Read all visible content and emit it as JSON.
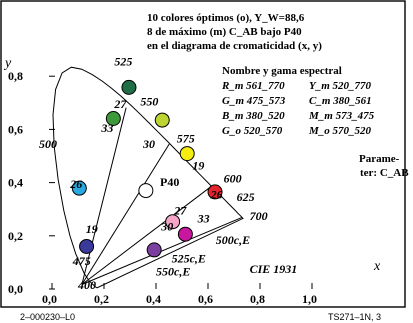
{
  "chart_data": {
    "type": "scatter",
    "title_lines": [
      "10 colores óptimos (o), Y_W=88,6",
      "8 de máximo (m) C_AB bajo P40",
      "en el diagrama de cromaticidad (x, y)"
    ],
    "legend": {
      "title": "Nombre y gama espectral",
      "entries": [
        {
          "left": "R_m 561_770",
          "right": "Y_m 520_770"
        },
        {
          "left": "G_m 475_573",
          "right": "C_m 380_561"
        },
        {
          "left": "B_m 380_520",
          "right": "M_m 573_475"
        },
        {
          "left": "G_o 520_570",
          "right": "M_o 570_520"
        }
      ]
    },
    "side_note": [
      "Parame-",
      "ter: C_AB"
    ],
    "xlabel": "x",
    "ylabel": "y",
    "xlim": [
      0.0,
      1.0
    ],
    "ylim": [
      0.0,
      0.9
    ],
    "x_ticks": [
      "0,0",
      "0,2",
      "0,4",
      "0,6",
      "0,8",
      "1,0"
    ],
    "y_ticks": [
      "0,0",
      "0,2",
      "0,4",
      "0,6",
      "0,8"
    ],
    "spectral_labels": [
      {
        "text": "400",
        "x": 0.1,
        "y": 0.0
      },
      {
        "text": "475",
        "x": 0.08,
        "y": 0.09
      },
      {
        "text": "19",
        "x": 0.13,
        "y": 0.21
      },
      {
        "text": "26",
        "x": 0.07,
        "y": 0.38
      },
      {
        "text": "500",
        "x": -0.05,
        "y": 0.53
      },
      {
        "text": "33",
        "x": 0.19,
        "y": 0.59
      },
      {
        "text": "27",
        "x": 0.24,
        "y": 0.68
      },
      {
        "text": "525",
        "x": 0.24,
        "y": 0.84
      },
      {
        "text": "550",
        "x": 0.34,
        "y": 0.69
      },
      {
        "text": "30",
        "x": 0.35,
        "y": 0.53
      },
      {
        "text": "575",
        "x": 0.48,
        "y": 0.55
      },
      {
        "text": "19",
        "x": 0.54,
        "y": 0.45
      },
      {
        "text": "600",
        "x": 0.66,
        "y": 0.4
      },
      {
        "text": "26",
        "x": 0.61,
        "y": 0.34
      },
      {
        "text": "625",
        "x": 0.71,
        "y": 0.33
      },
      {
        "text": "700",
        "x": 0.76,
        "y": 0.26
      },
      {
        "text": "27",
        "x": 0.47,
        "y": 0.28
      },
      {
        "text": "33",
        "x": 0.56,
        "y": 0.25
      },
      {
        "text": "30",
        "x": 0.42,
        "y": 0.22
      },
      {
        "text": "500c,E",
        "x": 0.63,
        "y": 0.17
      },
      {
        "text": "525c,E",
        "x": 0.46,
        "y": 0.1
      },
      {
        "text": "550c,E",
        "x": 0.4,
        "y": 0.05
      },
      {
        "text": "CIE 1931",
        "x": 0.76,
        "y": 0.06
      }
    ],
    "center_label": "P40",
    "series": [
      {
        "x": 0.133,
        "y": 0.16,
        "color": "#3b3a9c"
      },
      {
        "x": 0.105,
        "y": 0.379,
        "color": "#29a9e0"
      },
      {
        "x": 0.236,
        "y": 0.641,
        "color": "#3c9a3a"
      },
      {
        "x": 0.296,
        "y": 0.758,
        "color": "#1f6e45"
      },
      {
        "x": 0.424,
        "y": 0.635,
        "color": "#bed432"
      },
      {
        "x": 0.52,
        "y": 0.509,
        "color": "#f6ee12"
      },
      {
        "x": 0.627,
        "y": 0.365,
        "color": "#e5242b"
      },
      {
        "x": 0.464,
        "y": 0.253,
        "color": "#f5a6c8"
      },
      {
        "x": 0.513,
        "y": 0.206,
        "color": "#c8179e"
      },
      {
        "x": 0.393,
        "y": 0.147,
        "color": "#7b3fa0"
      }
    ],
    "white_point": {
      "x": 0.361,
      "y": 0.37,
      "color": "#ffffff"
    },
    "lines": [
      {
        "from": [
          0.115,
          0.017
        ],
        "to": [
          0.731,
          0.269
        ]
      },
      {
        "from": [
          0.115,
          0.017
        ],
        "to": [
          0.285,
          0.682
        ]
      },
      {
        "from": [
          0.115,
          0.017
        ],
        "to": [
          0.451,
          0.545
        ]
      },
      {
        "from": [
          0.115,
          0.017
        ],
        "to": [
          0.613,
          0.386
        ]
      }
    ]
  },
  "footer": {
    "left": "2–000230–L0",
    "right": "TS271–1N, 3"
  }
}
